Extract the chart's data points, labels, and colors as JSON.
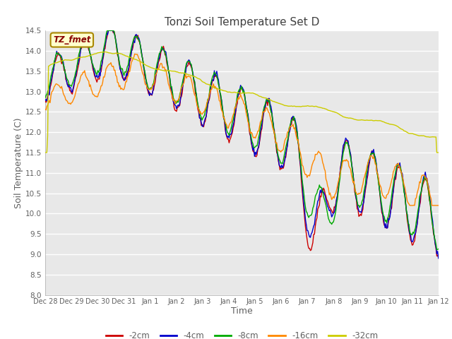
{
  "title": "Tonzi Soil Temperature Set D",
  "xlabel": "Time",
  "ylabel": "Soil Temperature (C)",
  "ylim": [
    8.0,
    14.5
  ],
  "yticks": [
    8.0,
    8.5,
    9.0,
    9.5,
    10.0,
    10.5,
    11.0,
    11.5,
    12.0,
    12.5,
    13.0,
    13.5,
    14.0,
    14.5
  ],
  "xtick_labels": [
    "Dec 28",
    "Dec 29",
    "Dec 30",
    "Dec 31",
    "Jan 1",
    "Jan 2",
    "Jan 3",
    "Jan 4",
    "Jan 5",
    "Jan 6",
    "Jan 7",
    "Jan 8",
    "Jan 9",
    "Jan 10",
    "Jan 11",
    "Jan 12"
  ],
  "series_colors": [
    "#cc0000",
    "#0000cc",
    "#00aa00",
    "#ff8800",
    "#cccc00"
  ],
  "series_labels": [
    "-2cm",
    "-4cm",
    "-8cm",
    "-16cm",
    "-32cm"
  ],
  "annotation_label": "TZ_fmet",
  "annotation_bg": "#ffffcc",
  "annotation_border": "#aa8800",
  "annotation_text_color": "#880000",
  "plot_bg_color": "#e8e8e8",
  "title_color": "#404040",
  "label_color": "#606060",
  "tick_color": "#606060",
  "grid_color": "#ffffff",
  "n_points": 480
}
